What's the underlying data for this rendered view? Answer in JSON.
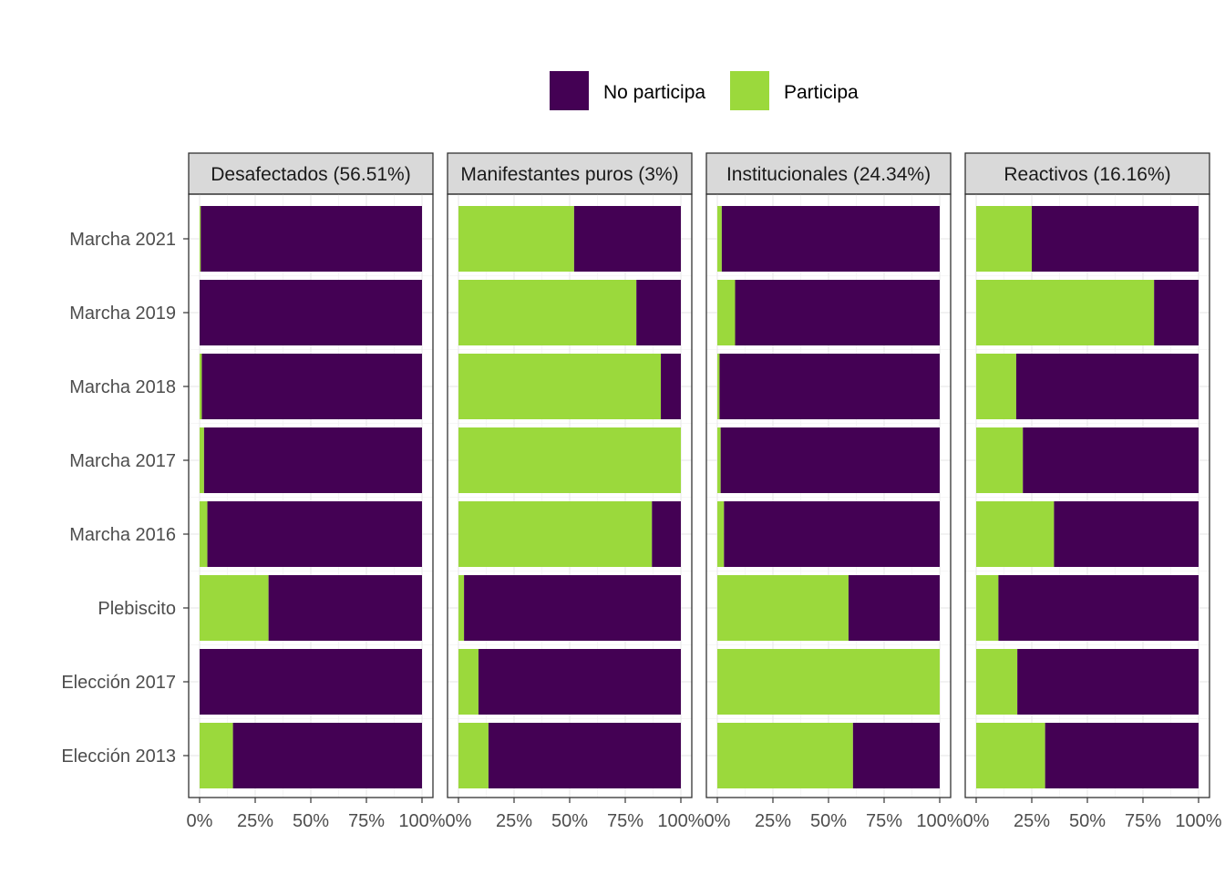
{
  "chart_data": {
    "type": "bar",
    "orientation": "horizontal",
    "stacked": true,
    "legend": {
      "position": "top",
      "items": [
        {
          "label": "No participa",
          "color": "#440154"
        },
        {
          "label": "Participa",
          "color": "#9bd93c"
        }
      ]
    },
    "categories": [
      "Marcha 2021",
      "Marcha 2019",
      "Marcha 2018",
      "Marcha 2017",
      "Marcha 2016",
      "Plebiscito",
      "Elección 2017",
      "Elección 2013"
    ],
    "x_ticks": [
      "0%",
      "25%",
      "50%",
      "75%",
      "100%"
    ],
    "xlim": [
      0,
      100
    ],
    "grid": true,
    "panels": [
      {
        "title": "Desafectados (56.51%)",
        "participa": [
          0.5,
          0,
          1,
          2,
          3.5,
          31,
          0,
          15
        ]
      },
      {
        "title": "Manifestantes puros (3%)",
        "participa": [
          52,
          80,
          91,
          100,
          87,
          2.5,
          9,
          13.5
        ]
      },
      {
        "title": "Institucionales (24.34%)",
        "participa": [
          2,
          8,
          1,
          1.5,
          3,
          59,
          100,
          61
        ]
      },
      {
        "title": "Reactivos (16.16%)",
        "participa": [
          25,
          80,
          18,
          21,
          35,
          10,
          18.5,
          31
        ]
      }
    ]
  }
}
